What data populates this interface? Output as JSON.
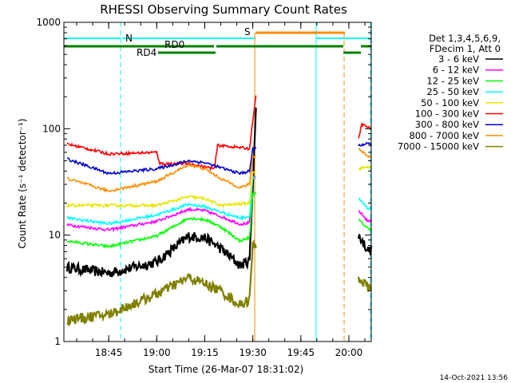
{
  "chart_data": {
    "type": "line",
    "title": "RHESSI Observing Summary Count Rates",
    "xlabel": "Start Time (26-Mar-07 18:31:02)",
    "ylabel": "Count Rate (s⁻¹ detector⁻¹)",
    "y_scale": "log",
    "ylim": [
      1,
      1000
    ],
    "xlim": [
      "18:31",
      "20:07"
    ],
    "y_ticks": [
      "1",
      "10",
      "100",
      "1000"
    ],
    "x_ticks": [
      "18:45",
      "19:00",
      "19:15",
      "19:30",
      "19:45",
      "20:00"
    ],
    "legend_header": [
      "Det 1,3,4,5,6,9,",
      "FDecim 1, Att 0"
    ],
    "series": [
      {
        "name": "3 - 6 keV",
        "color": "#000000",
        "x": [
          "18:32",
          "18:45",
          "19:00",
          "19:10",
          "19:15",
          "19:20",
          "19:26",
          "19:29",
          "19:30",
          "19:31",
          "20:03",
          "20:06",
          "20:07"
        ],
        "y": [
          5,
          4.4,
          5.6,
          9.8,
          9.5,
          7.5,
          5.2,
          5.8,
          30,
          150,
          10,
          7.2,
          7.2
        ]
      },
      {
        "name": "6 - 12 keV",
        "color": "#ff00ff",
        "x": [
          "18:32",
          "18:45",
          "19:00",
          "19:10",
          "19:15",
          "19:20",
          "19:26",
          "19:29",
          "19:30",
          "20:03",
          "20:06",
          "20:07"
        ],
        "y": [
          12.5,
          11.2,
          13.5,
          17.5,
          17,
          15,
          12.7,
          13,
          35,
          17,
          13.5,
          13.5
        ]
      },
      {
        "name": "12 - 25 keV",
        "color": "#00ff00",
        "x": [
          "18:32",
          "18:45",
          "19:00",
          "19:10",
          "19:15",
          "19:20",
          "19:26",
          "19:29",
          "19:30",
          "20:03",
          "20:06",
          "20:07"
        ],
        "y": [
          8.8,
          7.8,
          9.8,
          14.5,
          14,
          12,
          8.8,
          9.5,
          25,
          14,
          11.5,
          11.5
        ]
      },
      {
        "name": "25 - 50 keV",
        "color": "#00ffff",
        "x": [
          "18:32",
          "18:45",
          "19:00",
          "19:10",
          "19:15",
          "19:20",
          "19:26",
          "19:29",
          "19:30",
          "20:03",
          "20:06",
          "20:07"
        ],
        "y": [
          14.5,
          12.8,
          15.5,
          19.5,
          18.5,
          16.5,
          14.5,
          15,
          35,
          22,
          17.5,
          17.5
        ]
      },
      {
        "name": "50 - 100 keV",
        "color": "#e6e600",
        "x": [
          "18:32",
          "19:00",
          "19:10",
          "19:15",
          "19:20",
          "19:29",
          "19:30",
          "20:03",
          "20:06",
          "20:07"
        ],
        "y": [
          19,
          19,
          23,
          22,
          19,
          20,
          40,
          42,
          44,
          44
        ]
      },
      {
        "name": "100 - 300 keV",
        "color": "#ff0000",
        "x": [
          "18:32",
          "18:45",
          "19:00",
          "19:01",
          "19:10",
          "19:18",
          "19:19",
          "19:29",
          "19:30",
          "19:31",
          "20:03",
          "20:04",
          "20:07"
        ],
        "y": [
          72,
          58,
          60,
          47,
          47,
          42,
          70,
          65,
          120,
          200,
          80,
          110,
          100
        ]
      },
      {
        "name": "300 - 800 keV",
        "color": "#0000cc",
        "x": [
          "18:32",
          "18:45",
          "19:00",
          "19:10",
          "19:15",
          "19:20",
          "19:26",
          "19:29",
          "19:30",
          "20:03",
          "20:06",
          "20:07"
        ],
        "y": [
          52,
          38,
          42,
          50,
          48,
          43,
          38,
          40,
          65,
          70,
          72,
          72
        ]
      },
      {
        "name": "800 - 7000 keV",
        "color": "#ff8c00",
        "x": [
          "18:32",
          "18:45",
          "19:00",
          "19:10",
          "19:15",
          "19:20",
          "19:26",
          "19:29",
          "19:30",
          "20:03",
          "20:06",
          "20:07"
        ],
        "y": [
          34,
          26,
          32,
          46,
          42,
          34,
          28,
          30,
          55,
          65,
          55,
          55
        ]
      },
      {
        "name": "7000 - 15000 keV",
        "color": "#808000",
        "x": [
          "18:32",
          "18:45",
          "19:00",
          "19:10",
          "19:15",
          "19:20",
          "19:26",
          "19:29",
          "19:30",
          "20:03",
          "20:07"
        ],
        "y": [
          1.6,
          1.8,
          2.8,
          4,
          3.5,
          3,
          2.2,
          2.5,
          8,
          4,
          3
        ]
      }
    ],
    "annotations": [
      {
        "label": "N",
        "color": "#00ffff"
      },
      {
        "label": "S",
        "color": "#ff8c00"
      },
      {
        "label": "RD0",
        "color": "#008000"
      },
      {
        "label": "RD4",
        "color": "#008000"
      }
    ],
    "timestamp": "14-Oct-2021 13:56"
  }
}
